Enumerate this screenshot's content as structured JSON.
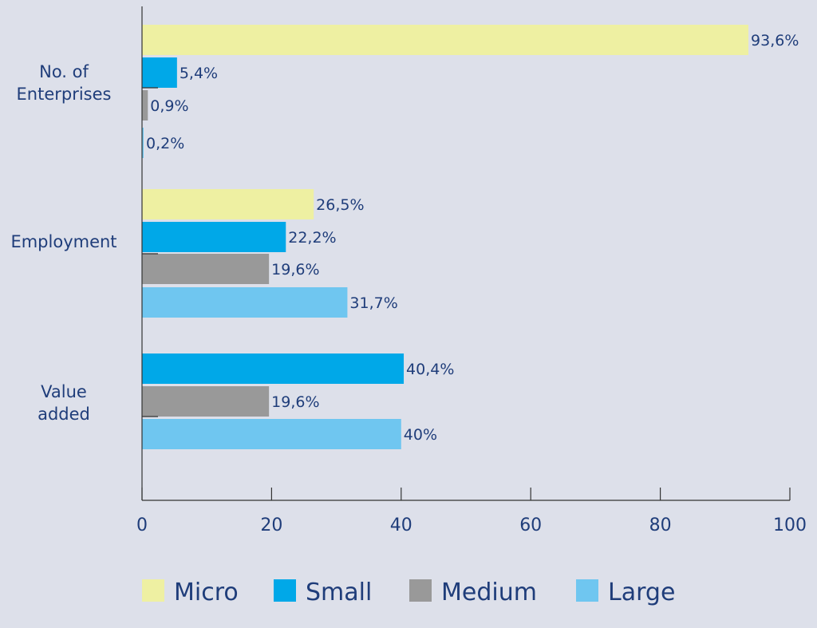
{
  "chart_data": {
    "type": "bar",
    "orientation": "horizontal",
    "categories": [
      "No. of\nEnterprises",
      "Employment",
      "Value\nadded"
    ],
    "series": [
      {
        "name": "Micro",
        "color": "#eef0a2",
        "values": [
          93.6,
          26.5,
          null
        ],
        "labels": [
          "93,6%",
          "26,5%",
          null
        ]
      },
      {
        "name": "Small",
        "color": "#00a8e8",
        "values": [
          5.4,
          22.2,
          40.4
        ],
        "labels": [
          "5,4%",
          "22,2%",
          "40,4%"
        ]
      },
      {
        "name": "Medium",
        "color": "#999999",
        "values": [
          0.9,
          19.6,
          19.6
        ],
        "labels": [
          "0,9%",
          "19,6%",
          "19,6%"
        ]
      },
      {
        "name": "Large",
        "color": "#6fc6f0",
        "values": [
          0.2,
          31.7,
          40
        ],
        "labels": [
          "0,2%",
          "31,7%",
          "40%"
        ]
      }
    ],
    "xlim": [
      0,
      100
    ],
    "xticks": [
      0,
      20,
      40,
      60,
      80,
      100
    ],
    "title": "",
    "xlabel": "",
    "ylabel": "",
    "grid": false,
    "legend_position": "bottom"
  }
}
